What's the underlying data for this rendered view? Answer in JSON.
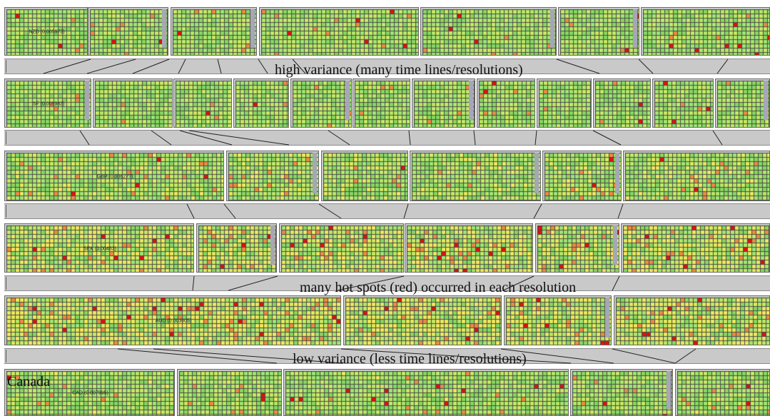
{
  "colors": {
    "background": "#ffffff",
    "panel_gray": "#c9c9c9",
    "grid_line": "#4a4a4a",
    "cell_green": "#8fe06a",
    "cell_yellow": "#e8ec5a",
    "cell_red": "#e01010",
    "cell_orange": "#f08a40",
    "link_line": "#222222"
  },
  "annotations": {
    "high_variance": "high variance (many time lines/resolutions)",
    "hot_spots": "many hot spots (red) occurred in each resolution",
    "low_variance": "low variance (less time lines/resolutions)"
  },
  "country_label": "Canada",
  "rows": [
    {
      "label": "NZD (0.005973)",
      "hotness": 0.15
    },
    {
      "label": "SF (0.005983)",
      "hotness": 0.12
    },
    {
      "label": "GBP (0.00627?)",
      "hotness": 0.25
    },
    {
      "label": "SEK (0.00463)",
      "hotness": 0.6
    },
    {
      "label": "AUD (0.003605)",
      "hotness": 0.85
    },
    {
      "label": "CAD (0.007995)",
      "hotness": 0.18
    }
  ]
}
